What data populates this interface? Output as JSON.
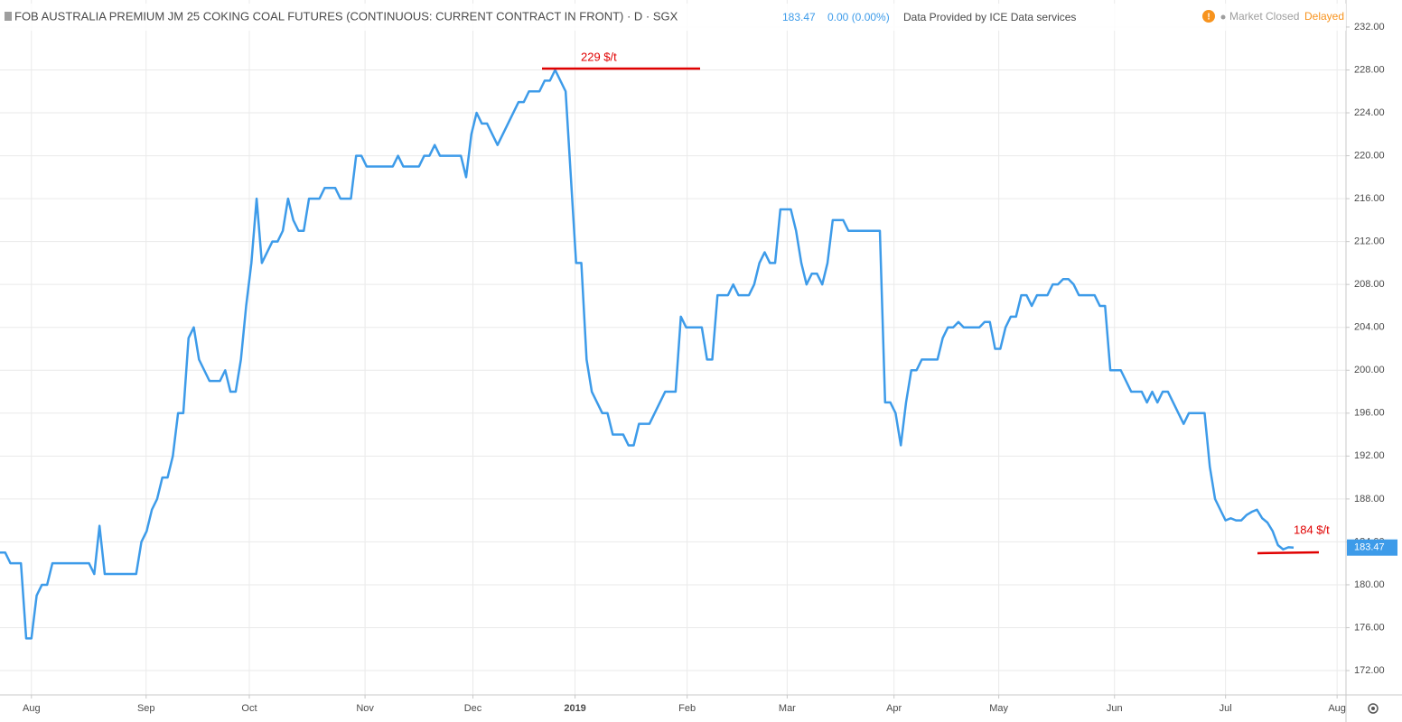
{
  "header": {
    "title": "FOB AUSTRALIA PREMIUM JM 25 COKING COAL FUTURES (CONTINUOUS: CURRENT CONTRACT IN FRONT) · D · SGX",
    "change": "0.00 (0.00%)",
    "provider": "Data Provided by ICE Data services",
    "status": "Market Closed",
    "delay": "Delayed"
  },
  "chart_data": {
    "type": "line",
    "series": [
      {
        "color": "#3d9be9",
        "values": [
          183,
          183,
          182,
          182,
          182,
          175,
          175,
          179,
          180,
          180,
          182,
          182,
          182,
          182,
          182,
          182,
          182,
          182,
          181,
          185.5,
          181,
          181,
          181,
          181,
          181,
          181,
          181,
          184,
          185,
          187,
          188,
          190,
          190,
          192,
          196,
          196,
          203,
          204,
          201,
          200,
          199,
          199,
          199,
          200,
          198,
          198,
          201,
          206,
          210,
          216,
          210,
          211,
          212,
          212,
          213,
          216,
          214,
          213,
          213,
          216,
          216,
          216,
          217,
          217,
          217,
          216,
          216,
          216,
          220,
          220,
          219,
          219,
          219,
          219,
          219,
          219,
          220,
          219,
          219,
          219,
          219,
          220,
          220,
          221,
          220,
          220,
          220,
          220,
          220,
          218,
          222,
          224,
          223,
          223,
          222,
          221,
          222,
          223,
          224,
          225,
          225,
          226,
          226,
          226,
          227,
          227,
          228,
          227,
          226,
          218,
          210,
          210,
          201,
          198,
          197,
          196,
          196,
          194,
          194,
          194,
          193,
          193,
          195,
          195,
          195,
          196,
          197,
          198,
          198,
          198,
          205,
          204,
          204,
          204,
          204,
          201,
          201,
          207,
          207,
          207,
          208,
          207,
          207,
          207,
          208,
          210,
          211,
          210,
          210,
          215,
          215,
          215,
          213,
          210,
          208,
          209,
          209,
          208,
          210,
          214,
          214,
          214,
          213,
          213,
          213,
          213,
          213,
          213,
          213,
          197,
          197,
          196,
          193,
          197,
          200,
          200,
          201,
          201,
          201,
          201,
          203,
          204,
          204,
          204.5,
          204,
          204,
          204,
          204,
          204.5,
          204.5,
          202,
          202,
          204,
          205,
          205,
          207,
          207,
          206,
          207,
          207,
          207,
          208,
          208,
          208.5,
          208.5,
          208,
          207,
          207,
          207,
          207,
          206,
          206,
          200,
          200,
          200,
          199,
          198,
          198,
          198,
          197,
          198,
          197,
          198,
          198,
          197,
          196,
          195,
          196,
          196,
          196,
          196,
          191,
          188,
          187,
          186,
          186.2,
          186,
          186,
          186.5,
          186.8,
          187,
          186.2,
          185.8,
          185,
          183.7,
          183.3,
          183.5,
          183.47
        ]
      }
    ],
    "xlim": [
      0,
      257
    ],
    "xticks": [
      {
        "value": 6,
        "label": "Aug"
      },
      {
        "value": 27.9,
        "label": "Sep"
      },
      {
        "value": 47.6,
        "label": "Oct"
      },
      {
        "value": 69.7,
        "label": "Nov"
      },
      {
        "value": 90.3,
        "label": "Dec"
      },
      {
        "value": 109.8,
        "label": "2019"
      },
      {
        "value": 131.2,
        "label": "Feb"
      },
      {
        "value": 150.3,
        "label": "Mar"
      },
      {
        "value": 170.7,
        "label": "Apr"
      },
      {
        "value": 190.7,
        "label": "May"
      },
      {
        "value": 212.8,
        "label": "Jun"
      },
      {
        "value": 234,
        "label": "Jul"
      },
      {
        "value": 255.3,
        "label": "Aug"
      }
    ],
    "ylim": [
      169.73,
      234.52
    ],
    "yticks": [
      {
        "value": 172,
        "label": "172.00"
      },
      {
        "value": 176,
        "label": "176.00"
      },
      {
        "value": 180,
        "label": "180.00"
      },
      {
        "value": 184,
        "label": "184.00"
      },
      {
        "value": 188,
        "label": "188.00"
      },
      {
        "value": 192,
        "label": "192.00"
      },
      {
        "value": 196,
        "label": "196.00"
      },
      {
        "value": 200,
        "label": "200.00"
      },
      {
        "value": 204,
        "label": "204.00"
      },
      {
        "value": 208,
        "label": "208.00"
      },
      {
        "value": 212,
        "label": "212.00"
      },
      {
        "value": 216,
        "label": "216.00"
      },
      {
        "value": 220,
        "label": "220.00"
      },
      {
        "value": 224,
        "label": "224.00"
      },
      {
        "value": 228,
        "label": "228.00"
      },
      {
        "value": 232,
        "label": "232.00"
      }
    ],
    "grid": true,
    "annotations": [
      "229 $/t",
      "184 $/t"
    ]
  }
}
